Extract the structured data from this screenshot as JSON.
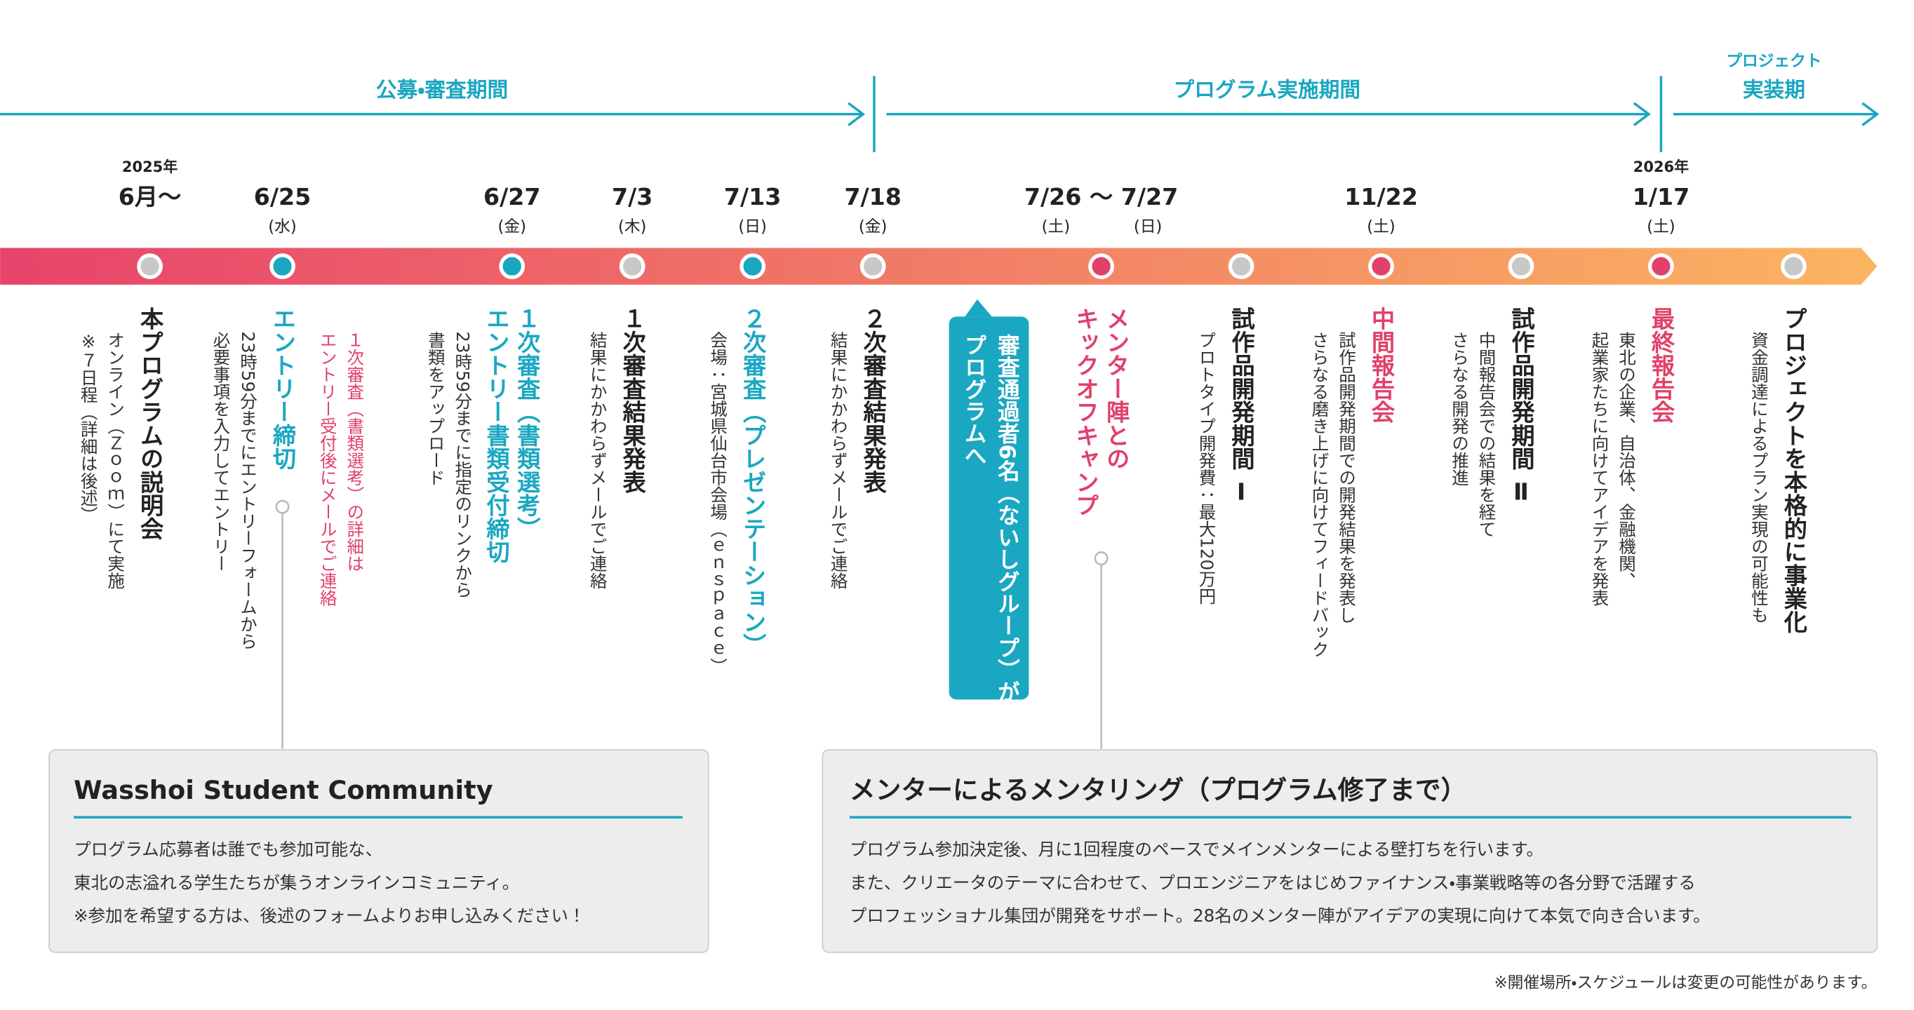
{
  "phases": [
    "公募・審査期間",
    "プログラム実施期間",
    [
      "プロジェクト",
      "実装期"
    ]
  ],
  "dates": [
    {
      "year": "2025年",
      "date": "6月〜",
      "dot": "#c8c8c8"
    },
    {
      "date": "6/25",
      "weekday": [
        "(水)"
      ],
      "dot": "#1aa7c1"
    },
    {
      "date": "6/27",
      "weekday": [
        "(金)"
      ],
      "dot": "#1aa7c1"
    },
    {
      "date": "7/3",
      "weekday": [
        "(木)"
      ],
      "dot": "#c8c8c8"
    },
    {
      "date": "7/13",
      "weekday": [
        "(日)"
      ],
      "dot": "#1aa7c1"
    },
    {
      "date": "7/18",
      "weekday": [
        "(金)"
      ],
      "dot": "#c8c8c8"
    },
    {
      "date": "7/26 〜 7/27",
      "weekday": [
        "(土)",
        "(日)"
      ],
      "dot": "#e0416a"
    },
    {
      "dot": "#c8c8c8"
    },
    {
      "date": "11/22",
      "weekday": [
        "(土)"
      ],
      "dot": "#e0416a"
    },
    {
      "dot": "#c8c8c8"
    },
    {
      "year": "2026年",
      "date": "1/17",
      "weekday": [
        "(土)"
      ],
      "dot": "#e0416a"
    },
    {
      "dot": "#c8c8c8"
    }
  ],
  "events": [
    {
      "title": [
        "本プログラムの説明会"
      ],
      "desc": [
        "オンライン（Ｚｏｏｍ）にて実施",
        "※７日程（詳細は後述）"
      ],
      "color": "#222222"
    },
    {
      "title": [
        "エントリー締切"
      ],
      "desc": [
        "23時59分までにエントリーフォームから",
        "必要事項を入力してエントリー"
      ],
      "color": "#1aa7c1"
    },
    {
      "title": [],
      "desc": [
        "１次審査（書類選考）の詳細は",
        "エントリー受付後にメールでご連絡"
      ],
      "color": "#e0416a"
    },
    {
      "title": [
        "１次審査（書類選考）",
        "エントリー書類受付締切"
      ],
      "desc": [
        "23時59分までに指定のリンクから",
        "書類をアップロード"
      ],
      "color": "#1aa7c1"
    },
    {
      "title": [
        "１次審査結果発表"
      ],
      "desc": [
        "結果にかかわらずメールでご連絡"
      ],
      "color": "#222222"
    },
    {
      "title": [
        "２次審査（プレゼンテーション）"
      ],
      "desc": [
        "会場：宮城県仙台市会場（ｅｎｓｐａｃｅ）"
      ],
      "color": "#1aa7c1"
    },
    {
      "title": [
        "２次審査結果発表"
      ],
      "desc": [
        "結果にかかわらずメールでご連絡"
      ],
      "color": "#222222"
    },
    {
      "title": [
        "メンター陣との",
        "キックオフキャンプ"
      ],
      "desc": [],
      "color": "#e0416a"
    },
    {
      "title": [
        "試作品開発期間 Ⅰ"
      ],
      "desc": [
        "プロトタイプ開発費：最大120万円"
      ],
      "color": "#222222"
    },
    {
      "title": [
        "中間報告会"
      ],
      "desc": [
        "試作品開発期間での開発結果を発表し",
        "さらなる磨き上げに向けてフィードバック"
      ],
      "color": "#e0416a"
    },
    {
      "title": [
        "試作品開発期間 Ⅱ"
      ],
      "desc": [
        "中間報告会での結果を経て",
        "さらなる開発の推進"
      ],
      "color": "#222222"
    },
    {
      "title": [
        "最終報告会"
      ],
      "desc": [
        "東北の企業、自治体、金融機関、",
        "起業家たちに向けてアイデアを発表"
      ],
      "color": "#e0416a"
    },
    {
      "title": [
        "プロジェクトを本格的に事業化"
      ],
      "desc": [
        "資金調達によるプラン実現の可能性も"
      ],
      "color": "#222222"
    }
  ],
  "callout": [
    "審査通過者6名（ないしグループ）が",
    "プログラムへ"
  ],
  "boxes": [
    {
      "title": "Wasshoi Student Community",
      "lines": [
        "プログラム応募者は誰でも参加可能な、",
        "東北の志溢れる学生たちが集うオンラインコミュニティ。",
        "※参加を希望する方は、後述のフォームよりお申し込みください！"
      ]
    },
    {
      "title": "メンターによるメンタリング（プログラム修了まで）",
      "lines": [
        "プログラム参加決定後、月に1回程度のペースでメインメンターによる壁打ちを行います。",
        "また、クリエータのテーマに合わせて、プロエンジニアをはじめファイナンス・事業戦略等の各分野で活躍する",
        "プロフェッショナル集団が開発をサポート。28名のメンター陣がアイデアの実現に向けて本気で向き合います。"
      ]
    }
  ],
  "footnote": "※開催場所・スケジュールは変更の可能性があります。"
}
